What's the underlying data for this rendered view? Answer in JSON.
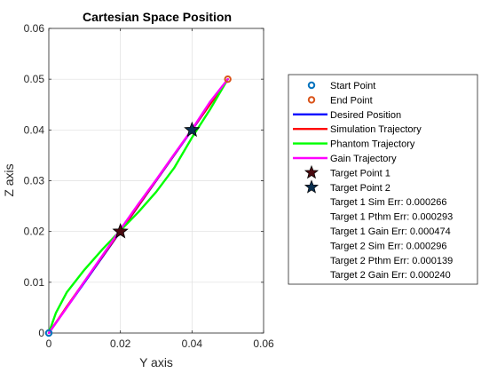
{
  "chart_data": {
    "type": "line",
    "title": "Cartesian Space Position",
    "xlabel": "Y axis",
    "ylabel": "Z axis",
    "xlim": [
      0,
      0.06
    ],
    "ylim": [
      0,
      0.06
    ],
    "xticks": [
      "0",
      "0.02",
      "0.04",
      "0.06"
    ],
    "yticks": [
      "0",
      "0.01",
      "0.02",
      "0.03",
      "0.04",
      "0.05",
      "0.06"
    ],
    "xtick_values": [
      0,
      0.02,
      0.04,
      0.06
    ],
    "ytick_values": [
      0,
      0.01,
      0.02,
      0.03,
      0.04,
      0.05,
      0.06
    ],
    "grid": true,
    "legend_position": "right",
    "colors": {
      "start": "#0072BD",
      "end": "#D95319",
      "desired": "#0000FF",
      "simulation": "#FF0000",
      "phantom": "#00FF00",
      "gain": "#FF00FF",
      "target1": "#4A0A10",
      "target2": "#0A2F50"
    },
    "series": [
      {
        "name": "Desired Position",
        "key": "desired",
        "points": [
          [
            0,
            0
          ],
          [
            0.01,
            0.01
          ],
          [
            0.02,
            0.02
          ],
          [
            0.03,
            0.03
          ],
          [
            0.04,
            0.04
          ],
          [
            0.05,
            0.05
          ]
        ]
      },
      {
        "name": "Simulation Trajectory",
        "key": "simulation",
        "points": [
          [
            0,
            0
          ],
          [
            0.005,
            0.0052
          ],
          [
            0.01,
            0.0102
          ],
          [
            0.02,
            0.0201
          ],
          [
            0.03,
            0.0301
          ],
          [
            0.04,
            0.0401
          ],
          [
            0.045,
            0.045
          ],
          [
            0.05,
            0.05
          ]
        ]
      },
      {
        "name": "Phantom Trajectory",
        "key": "phantom",
        "points": [
          [
            0,
            0
          ],
          [
            0.002,
            0.004
          ],
          [
            0.005,
            0.008
          ],
          [
            0.01,
            0.0125
          ],
          [
            0.015,
            0.0165
          ],
          [
            0.02,
            0.0202
          ],
          [
            0.025,
            0.0238
          ],
          [
            0.03,
            0.0278
          ],
          [
            0.035,
            0.0325
          ],
          [
            0.04,
            0.0385
          ],
          [
            0.045,
            0.044
          ],
          [
            0.05,
            0.05
          ]
        ]
      },
      {
        "name": "Gain Trajectory",
        "key": "gain",
        "points": [
          [
            0,
            0
          ],
          [
            0.005,
            0.005
          ],
          [
            0.01,
            0.0102
          ],
          [
            0.015,
            0.0153
          ],
          [
            0.02,
            0.0204
          ],
          [
            0.025,
            0.0254
          ],
          [
            0.03,
            0.0302
          ],
          [
            0.035,
            0.0352
          ],
          [
            0.04,
            0.0401
          ],
          [
            0.045,
            0.0455
          ],
          [
            0.05,
            0.05
          ]
        ]
      }
    ],
    "markers": {
      "start": {
        "name": "Start Point",
        "x": 0,
        "y": 0
      },
      "end": {
        "name": "End Point",
        "x": 0.05,
        "y": 0.05
      },
      "target1": {
        "name": "Target Point 1",
        "x": 0.02,
        "y": 0.02
      },
      "target2": {
        "name": "Target Point 2",
        "x": 0.04,
        "y": 0.04
      }
    },
    "legend": {
      "items": [
        {
          "label": "Start Point",
          "kind": "circle",
          "color_key": "start"
        },
        {
          "label": "End Point",
          "kind": "circle",
          "color_key": "end"
        },
        {
          "label": "Desired Position",
          "kind": "line",
          "color_key": "desired"
        },
        {
          "label": "Simulation Trajectory",
          "kind": "line",
          "color_key": "simulation"
        },
        {
          "label": "Phantom Trajectory",
          "kind": "line",
          "color_key": "phantom"
        },
        {
          "label": "Gain Trajectory",
          "kind": "line",
          "color_key": "gain"
        },
        {
          "label": "Target Point 1",
          "kind": "star",
          "color_key": "target1"
        },
        {
          "label": "Target Point 2",
          "kind": "star",
          "color_key": "target2"
        },
        {
          "label": "Target 1 Sim Err: 0.000266",
          "kind": "none"
        },
        {
          "label": "Target 1 Pthm Err: 0.000293",
          "kind": "none"
        },
        {
          "label": "Target 1 Gain Err: 0.000474",
          "kind": "none"
        },
        {
          "label": "Target 2 Sim Err: 0.000296",
          "kind": "none"
        },
        {
          "label": "Target 2 Pthm Err: 0.000139",
          "kind": "none"
        },
        {
          "label": "Target 2 Gain Err: 0.000240",
          "kind": "none"
        }
      ]
    }
  }
}
